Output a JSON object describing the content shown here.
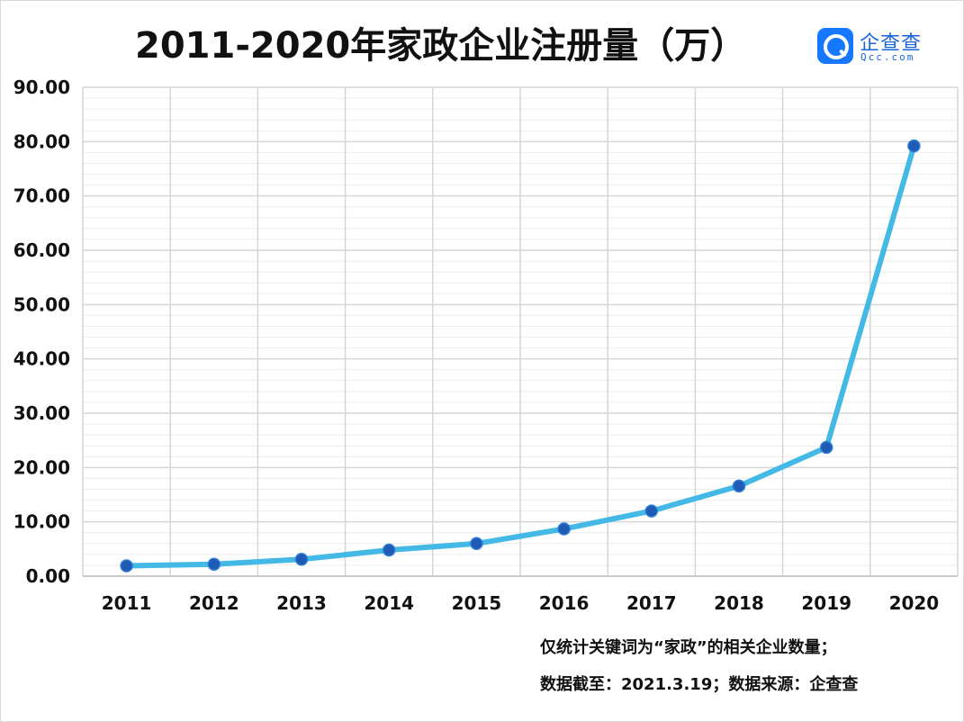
{
  "chart_data": {
    "type": "line",
    "title": "2011-2020年家政企业注册量（万）",
    "categories": [
      "2011",
      "2012",
      "2013",
      "2014",
      "2015",
      "2016",
      "2017",
      "2018",
      "2019",
      "2020"
    ],
    "series": [
      {
        "values": [
          1.9,
          2.2,
          3.1,
          4.8,
          6.0,
          8.7,
          12.0,
          16.6,
          23.7,
          79.2
        ]
      }
    ],
    "ylim": [
      0,
      90
    ],
    "yticks": [
      "0.00",
      "10.00",
      "20.00",
      "30.00",
      "40.00",
      "50.00",
      "60.00",
      "70.00",
      "80.00",
      "90.00"
    ],
    "grid": true,
    "line_color": "#45b9e6",
    "marker_color": "#1f5bb5",
    "xlabel": "",
    "ylabel": ""
  },
  "logo": {
    "text": "企查查",
    "sub": "Qcc.com",
    "color": "#1677ff"
  },
  "notes": {
    "line1": "仅统计关键词为“家政”的相关企业数量；",
    "line2": "数据截至：2021.3.19；数据来源：企查查"
  }
}
